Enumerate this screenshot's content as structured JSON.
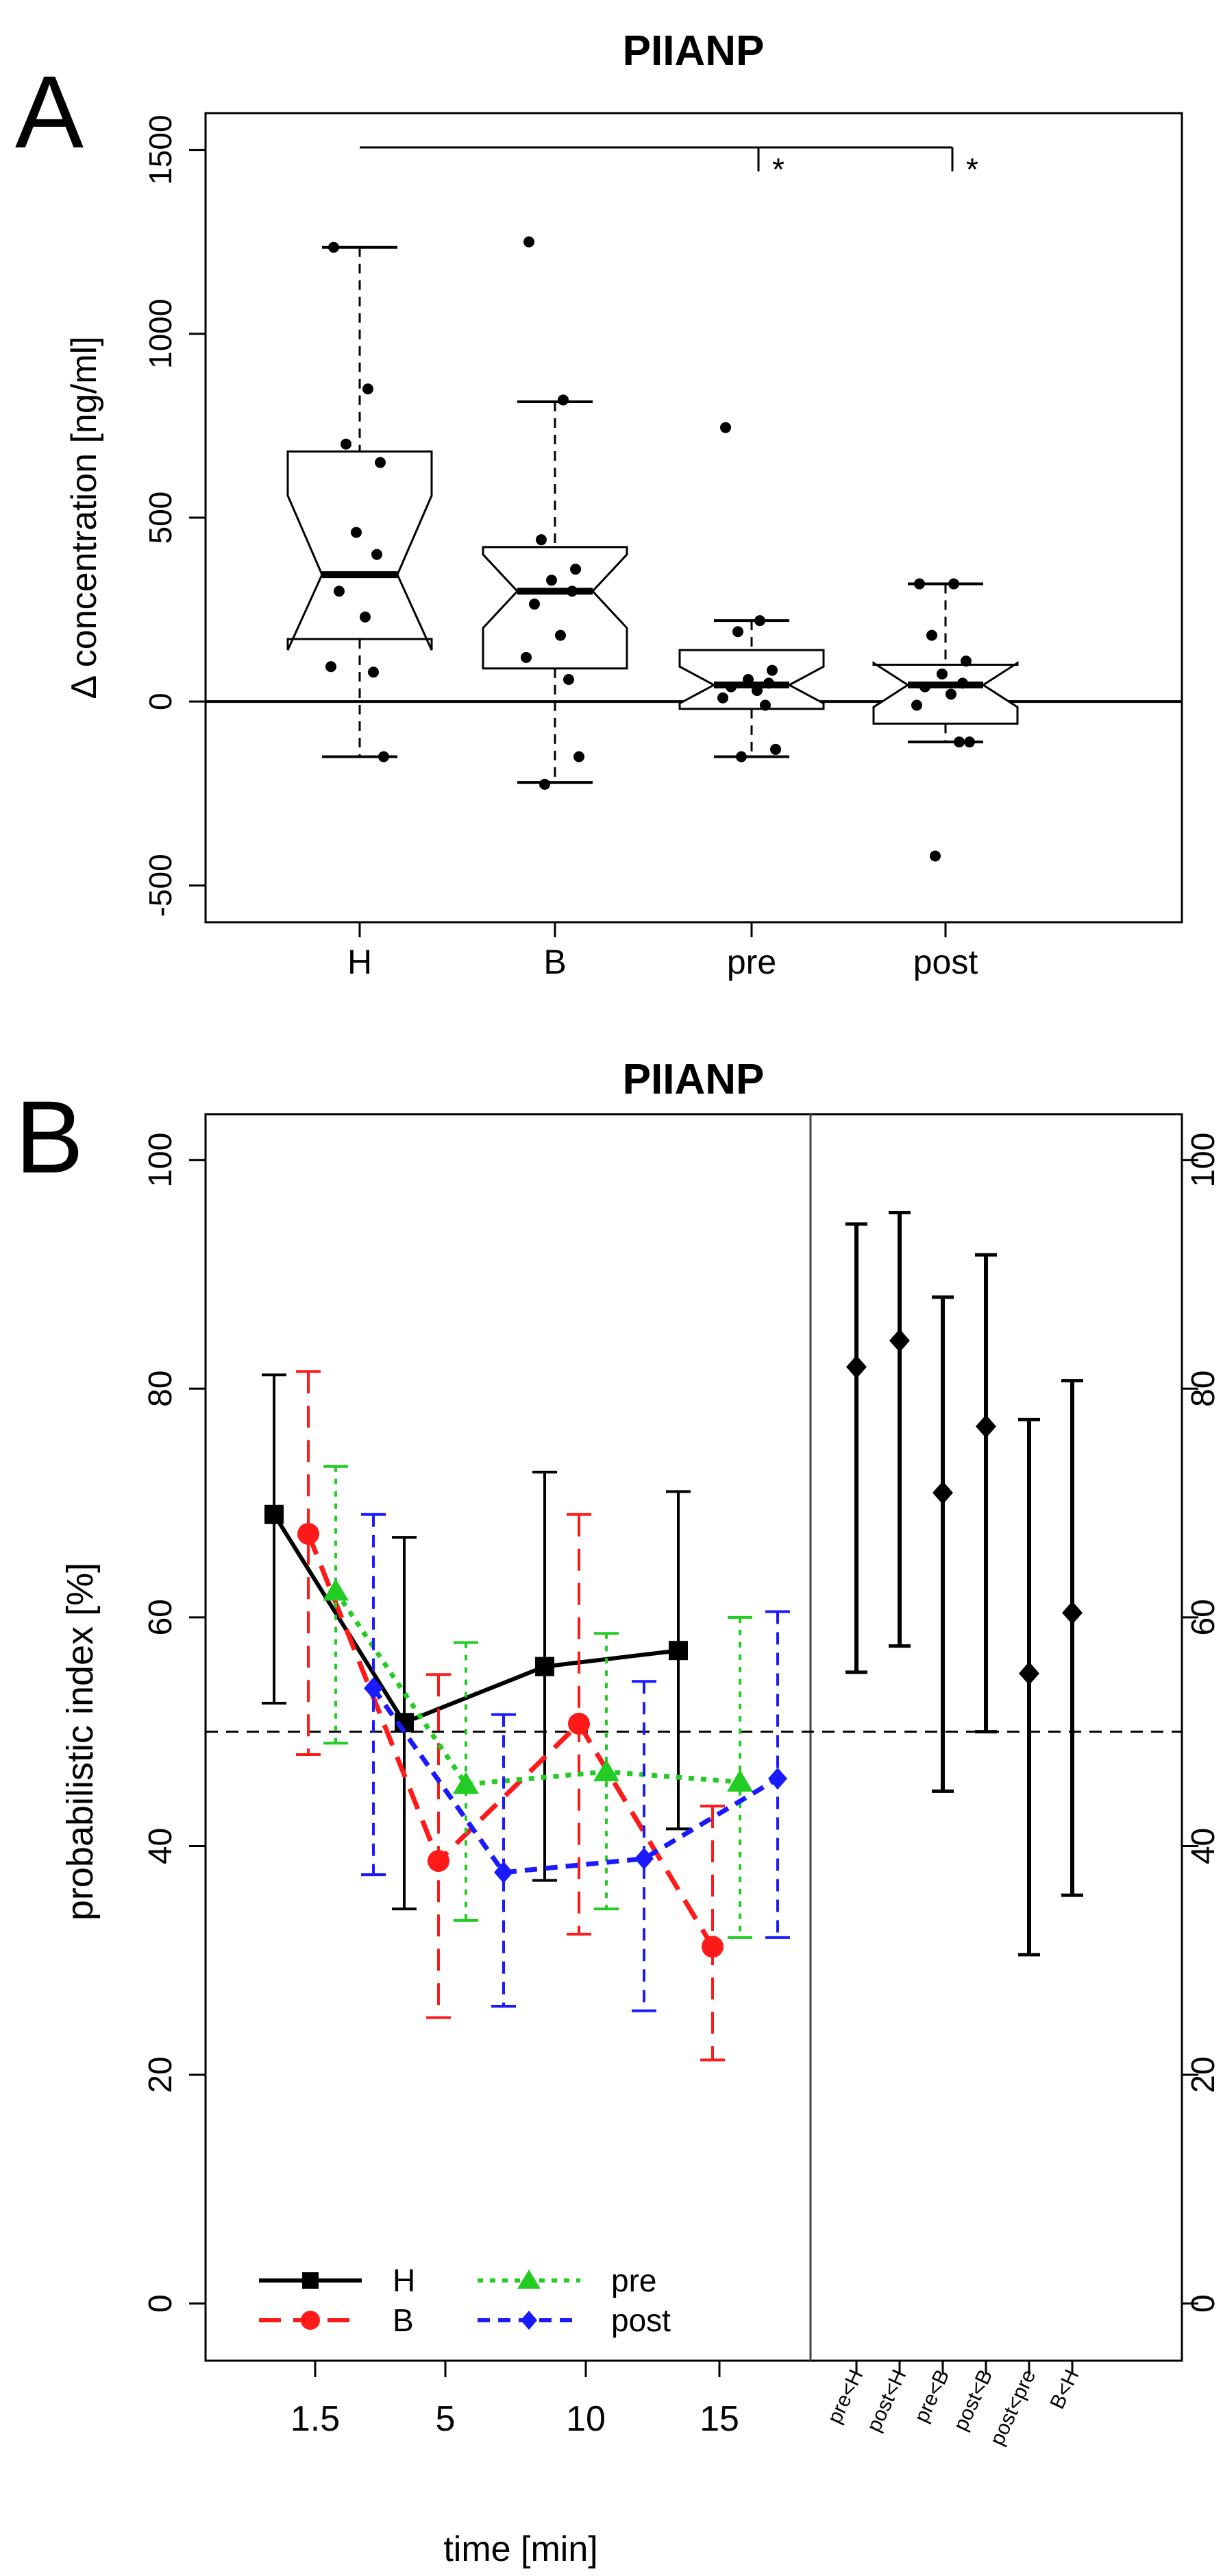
{
  "chart_data": [
    {
      "panel": "A",
      "type": "boxplot",
      "title": "PIIANP",
      "ylabel": "Δ concentration [ng/ml]",
      "xlabel": "",
      "ylim": [
        -600,
        1600
      ],
      "yticks": [
        -500,
        0,
        500,
        1000,
        1500
      ],
      "reference_line": 0,
      "groups": [
        {
          "name": "H",
          "whisker_low": -150,
          "q1": 170,
          "median": 345,
          "q3": 680,
          "whisker_high": 1235,
          "notch_low": 140,
          "notch_high": 560,
          "points": [
            1235,
            850,
            700,
            650,
            460,
            400,
            300,
            230,
            95,
            80,
            -150
          ]
        },
        {
          "name": "B",
          "whisker_low": -220,
          "q1": 90,
          "median": 300,
          "q3": 420,
          "whisker_high": 815,
          "notch_low": 200,
          "notch_high": 400,
          "points": [
            1250,
            820,
            440,
            360,
            330,
            300,
            265,
            180,
            120,
            60,
            -150,
            -225
          ]
        },
        {
          "name": "pre",
          "whisker_low": -150,
          "q1": -20,
          "median": 45,
          "q3": 140,
          "whisker_high": 220,
          "notch_low": -5,
          "notch_high": 95,
          "points": [
            745,
            220,
            190,
            85,
            60,
            50,
            40,
            30,
            10,
            -10,
            -130,
            -150
          ]
        },
        {
          "name": "post",
          "whisker_low": -110,
          "q1": -60,
          "median": 45,
          "q3": 100,
          "whisker_high": 320,
          "notch_low": -15,
          "notch_high": 105,
          "points": [
            320,
            320,
            180,
            110,
            75,
            50,
            40,
            20,
            -10,
            -110,
            -110,
            -420
          ]
        }
      ],
      "significance": [
        {
          "from": "H",
          "to": "pre",
          "label": "*"
        },
        {
          "from": "H",
          "to": "post",
          "label": "*"
        }
      ]
    },
    {
      "panel": "B",
      "type": "line",
      "title": "PIIANP",
      "xlabel": "time [min]",
      "ylabel": "probabilistic index [%]",
      "ylim": [
        -5,
        104
      ],
      "yticks": [
        0,
        20,
        40,
        60,
        80,
        100
      ],
      "reference_line": 50,
      "categories": [
        "1.5",
        "5",
        "10",
        "15"
      ],
      "series": [
        {
          "name": "H",
          "color": "#000000",
          "marker": "square",
          "dash": "solid",
          "values": [
            69,
            50.8,
            55.7,
            57.1
          ],
          "lower": [
            52.5,
            34.5,
            37.0,
            41.5
          ],
          "upper": [
            81.2,
            67.0,
            72.7,
            71.0
          ]
        },
        {
          "name": "B",
          "color": "#ff1a1a",
          "marker": "circle",
          "dash": "long",
          "values": [
            67.3,
            38.7,
            50.7,
            31.2
          ],
          "lower": [
            48.0,
            25.0,
            32.3,
            21.3
          ],
          "upper": [
            81.5,
            55.0,
            69.0,
            43.5
          ]
        },
        {
          "name": "pre",
          "color": "#22cc22",
          "marker": "triangle",
          "dash": "dotted",
          "values": [
            62.3,
            45.4,
            46.5,
            45.6
          ],
          "lower": [
            49.0,
            33.5,
            34.5,
            32.0
          ],
          "upper": [
            73.2,
            57.8,
            58.6,
            60.0
          ]
        },
        {
          "name": "post",
          "color": "#1a1aff",
          "marker": "diamond",
          "dash": "short",
          "values": [
            53.8,
            37.7,
            38.9,
            45.9
          ],
          "lower": [
            37.5,
            26.0,
            25.6,
            32.0
          ],
          "upper": [
            69.0,
            51.5,
            54.4,
            60.5
          ]
        }
      ],
      "comparisons": [
        {
          "label": "pre<H",
          "value": 81.9,
          "lower": 55.2,
          "upper": 94.4
        },
        {
          "label": "post<H",
          "value": 84.2,
          "lower": 57.5,
          "upper": 95.4
        },
        {
          "label": "pre<B",
          "value": 70.9,
          "lower": 44.8,
          "upper": 88.0
        },
        {
          "label": "post<B",
          "value": 76.7,
          "lower": 50.0,
          "upper": 91.7
        },
        {
          "label": "post<pre",
          "value": 55.1,
          "lower": 30.5,
          "upper": 77.3
        },
        {
          "label": "B<H",
          "value": 60.4,
          "lower": 35.7,
          "upper": 80.7
        }
      ]
    }
  ],
  "panel_labels": {
    "a": "A",
    "b": "B"
  },
  "legend": [
    {
      "series": 0,
      "label": "H"
    },
    {
      "series": 1,
      "label": "B"
    },
    {
      "series": 2,
      "label": "pre"
    },
    {
      "series": 3,
      "label": "post"
    }
  ]
}
